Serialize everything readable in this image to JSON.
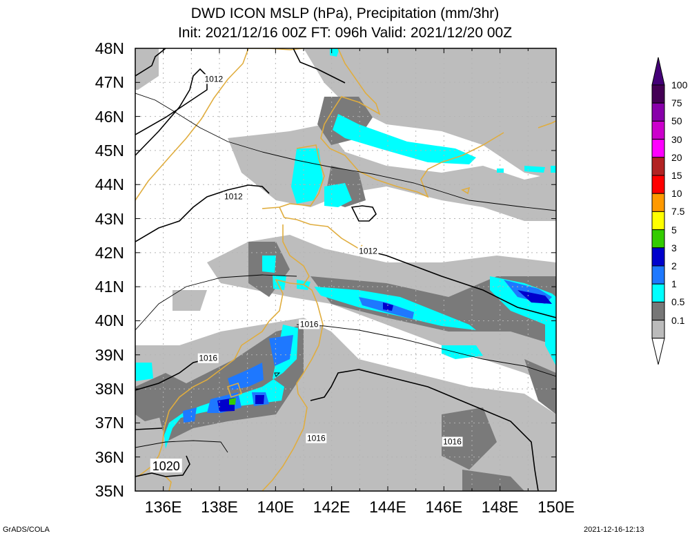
{
  "title": {
    "line1": "DWD ICON MSLP (hPa), Precipitation (mm/3hr)",
    "line2": "Init: 2021/12/16 00Z  FT: 096h  Valid: 2021/12/20 00Z"
  },
  "map": {
    "lon_range": [
      135,
      150
    ],
    "lat_range": [
      35,
      48
    ],
    "lat_labels": [
      "48N",
      "47N",
      "46N",
      "45N",
      "44N",
      "43N",
      "42N",
      "41N",
      "40N",
      "39N",
      "38N",
      "37N",
      "36N",
      "35N"
    ],
    "lon_labels": [
      "136E",
      "138E",
      "140E",
      "142E",
      "144E",
      "146E",
      "148E",
      "150E"
    ],
    "isobar_labels": [
      {
        "text": "1012",
        "lon": 137.8,
        "lat": 47.1
      },
      {
        "text": "1012",
        "lon": 138.5,
        "lat": 43.65
      },
      {
        "text": "1012",
        "lon": 143.3,
        "lat": 42.05
      },
      {
        "text": "1016",
        "lon": 141.2,
        "lat": 39.9
      },
      {
        "text": "1016",
        "lon": 137.6,
        "lat": 38.9
      },
      {
        "text": "1016",
        "lon": 141.45,
        "lat": 36.55
      },
      {
        "text": "1016",
        "lon": 146.3,
        "lat": 36.45
      },
      {
        "text": "1020",
        "lon": 136.1,
        "lat": 35.75
      }
    ],
    "colors": {
      "coast": "#e0ad3e",
      "isobar": "#000000",
      "grid": "#b4b4b4"
    }
  },
  "colorbar": {
    "labels": [
      "100",
      "75",
      "50",
      "30",
      "20",
      "15",
      "10",
      "7.5",
      "5",
      "3",
      "2",
      "1",
      "0.5",
      "0.1"
    ],
    "colors": [
      "#440055",
      "#8800aa",
      "#cc00cc",
      "#ff00ff",
      "#b22222",
      "#ff0000",
      "#ff9900",
      "#ffff00",
      "#33cc00",
      "#0000cc",
      "#1e78ff",
      "#00ffff",
      "#777777",
      "#bbbbbb"
    ],
    "top_cap_color": "#440077",
    "bottom_cap_color": "#ffffff"
  },
  "footer": {
    "left": "GrADS/COLA",
    "right": "2021-12-16-12:13"
  }
}
